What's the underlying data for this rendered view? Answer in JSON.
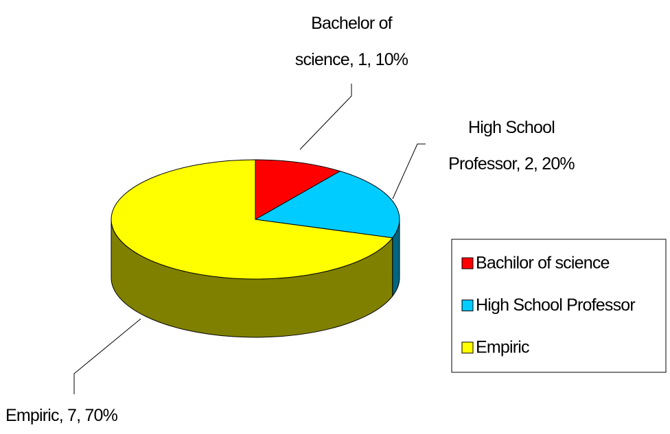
{
  "chart_data": {
    "type": "pie",
    "categories": [
      "Bachilor of science",
      "High School Professor",
      "Empiric"
    ],
    "values": [
      1,
      2,
      7
    ],
    "value_labels": [
      "Bachelor of\nscience, 1, 10%",
      "High School\nProfessor, 2, 20%",
      "Empiric, 7, 70%"
    ],
    "colors": [
      "#ff0000",
      "#00ccff",
      "#ffff00"
    ],
    "side_colors": [
      "#800000",
      "#006680",
      "#808000"
    ],
    "legend": "right"
  }
}
